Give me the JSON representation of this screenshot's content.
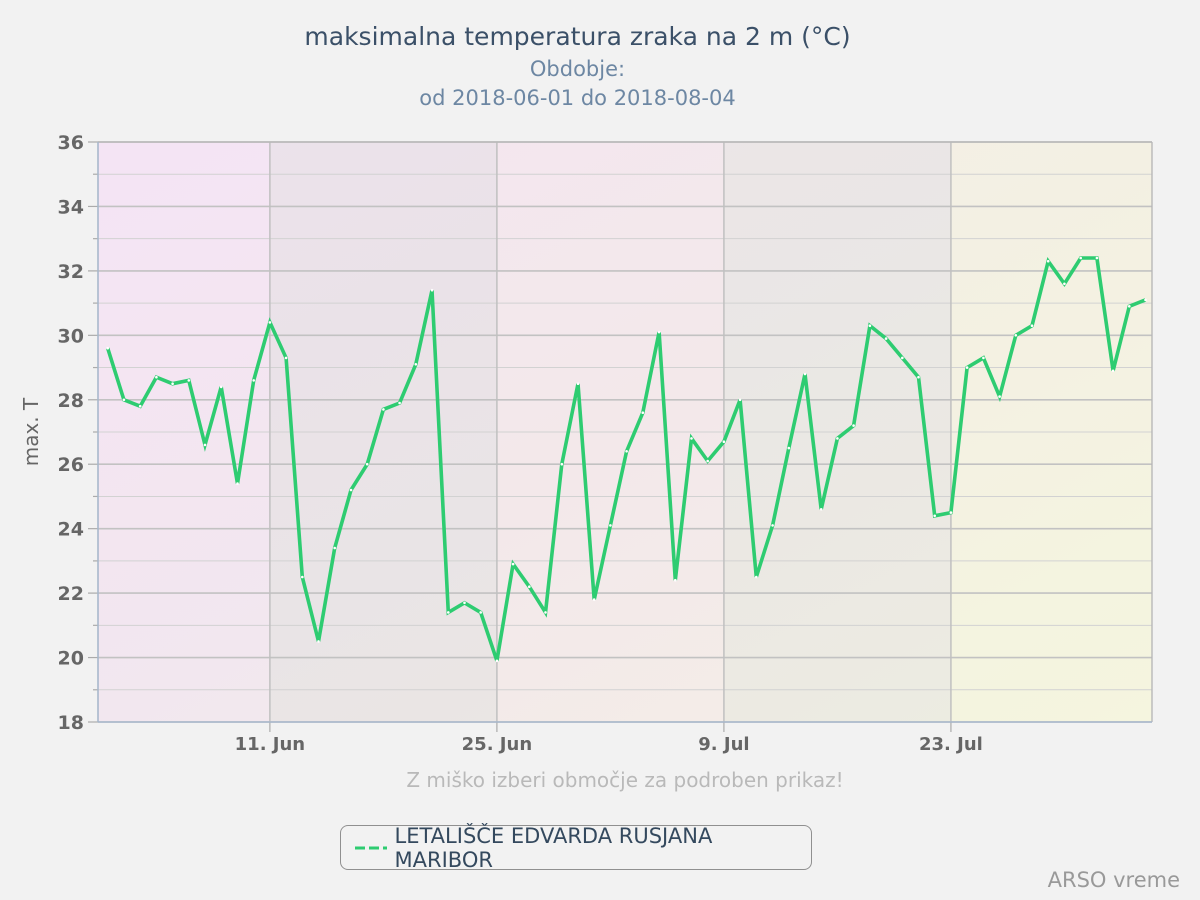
{
  "chart_data": {
    "type": "line",
    "title": "maksimalna temperatura zraka na 2 m (°C)",
    "subtitle_line1": "Obdobje:",
    "subtitle_line2": "od 2018-06-01 do 2018-08-04",
    "ylabel": "max. T",
    "ylim": [
      18,
      36
    ],
    "y_ticks": [
      18,
      20,
      22,
      24,
      26,
      28,
      30,
      32,
      34,
      36
    ],
    "x_start": "2018-06-01",
    "x_end": "2018-08-04",
    "x_ticks": [
      {
        "date": "2018-06-11",
        "label": "11. Jun"
      },
      {
        "date": "2018-06-25",
        "label": "25. Jun"
      },
      {
        "date": "2018-07-09",
        "label": "9. Jul"
      },
      {
        "date": "2018-07-23",
        "label": "23. Jul"
      }
    ],
    "grid": true,
    "legend_position": "bottom-center",
    "series": [
      {
        "name": "LETALIŠČE EDVARDA RUSJANA MARIBOR",
        "color": "#2ecc71",
        "dates": [
          "2018-06-01",
          "2018-06-02",
          "2018-06-03",
          "2018-06-04",
          "2018-06-05",
          "2018-06-06",
          "2018-06-07",
          "2018-06-08",
          "2018-06-09",
          "2018-06-10",
          "2018-06-11",
          "2018-06-12",
          "2018-06-13",
          "2018-06-14",
          "2018-06-15",
          "2018-06-16",
          "2018-06-17",
          "2018-06-18",
          "2018-06-19",
          "2018-06-20",
          "2018-06-21",
          "2018-06-22",
          "2018-06-23",
          "2018-06-24",
          "2018-06-25",
          "2018-06-26",
          "2018-06-27",
          "2018-06-28",
          "2018-06-29",
          "2018-06-30",
          "2018-07-01",
          "2018-07-02",
          "2018-07-03",
          "2018-07-04",
          "2018-07-05",
          "2018-07-06",
          "2018-07-07",
          "2018-07-08",
          "2018-07-09",
          "2018-07-10",
          "2018-07-11",
          "2018-07-12",
          "2018-07-13",
          "2018-07-14",
          "2018-07-15",
          "2018-07-16",
          "2018-07-17",
          "2018-07-18",
          "2018-07-19",
          "2018-07-20",
          "2018-07-21",
          "2018-07-22",
          "2018-07-23",
          "2018-07-24",
          "2018-07-25",
          "2018-07-26",
          "2018-07-27",
          "2018-07-28",
          "2018-07-29",
          "2018-07-30",
          "2018-07-31",
          "2018-08-01",
          "2018-08-02",
          "2018-08-03",
          "2018-08-04"
        ],
        "values": [
          29.6,
          28.0,
          27.8,
          28.7,
          28.5,
          28.6,
          26.6,
          28.4,
          25.4,
          28.6,
          30.4,
          29.3,
          22.5,
          20.5,
          23.4,
          25.2,
          26.0,
          27.7,
          27.9,
          29.1,
          31.4,
          21.4,
          21.7,
          21.4,
          19.9,
          22.9,
          22.2,
          21.4,
          26.0,
          28.5,
          21.8,
          24.1,
          26.4,
          27.6,
          30.1,
          22.4,
          26.8,
          26.1,
          26.7,
          28.0,
          22.5,
          24.1,
          26.5,
          28.8,
          24.6,
          26.8,
          27.2,
          30.3,
          29.9,
          29.3,
          28.7,
          24.4,
          24.5,
          29.0,
          29.3,
          28.1,
          30.0,
          30.3,
          32.3,
          31.6,
          32.4,
          32.4,
          28.9,
          30.9,
          31.1
        ]
      }
    ]
  },
  "hint": "Z miško izberi območje za podroben prikaz!",
  "credits": "ARSO vreme"
}
